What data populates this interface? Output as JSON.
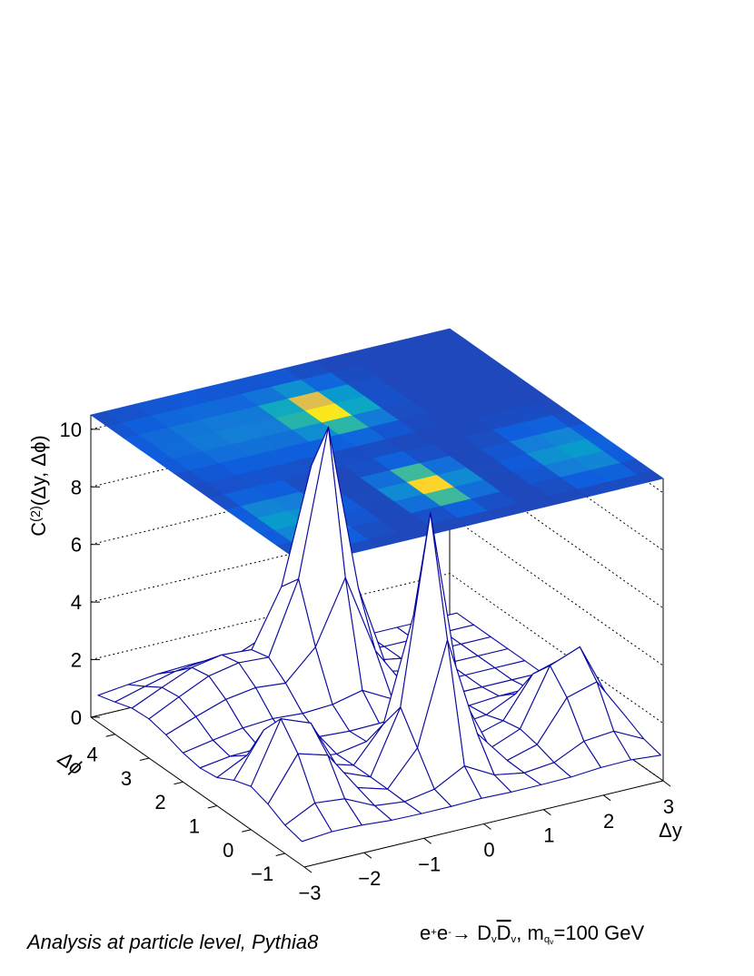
{
  "chart_data": {
    "type": "surface3d",
    "zlabel": [
      {
        "t": "C"
      },
      {
        "t": "(2)",
        "pos": "sup"
      },
      {
        "t": "(Δy, Δϕ)"
      }
    ],
    "xlabel": "Δy",
    "ylabel": "Δϕ",
    "x": [
      -3,
      -2.5,
      -2,
      -1.5,
      -1,
      -0.5,
      0,
      0.5,
      1,
      1.5,
      2,
      2.5,
      3
    ],
    "y": [
      -1.5,
      -1,
      -0.5,
      0,
      0.5,
      1,
      1.5,
      2,
      2.5,
      3,
      3.5,
      4,
      4.5
    ],
    "z": [
      [
        0.83,
        0.92,
        0.9,
        0.82,
        0.8,
        0.8,
        0.83,
        0.8,
        0.8,
        0.82,
        0.9,
        0.92,
        0.83
      ],
      [
        0.98,
        1.5,
        1.4,
        0.91,
        0.8,
        0.98,
        1.54,
        0.98,
        0.8,
        0.91,
        1.4,
        1.5,
        0.98
      ],
      [
        1.3,
        2.8,
        2.5,
        1.12,
        0.82,
        2.0,
        5.5,
        2.0,
        0.82,
        1.12,
        2.5,
        2.8,
        1.3
      ],
      [
        1.5,
        3.6,
        3.2,
        1.25,
        0.83,
        3.0,
        9.5,
        3.0,
        0.83,
        1.25,
        3.2,
        3.6,
        1.5
      ],
      [
        1.3,
        2.8,
        2.5,
        1.12,
        0.82,
        2.0,
        5.5,
        2.0,
        0.82,
        1.12,
        2.5,
        2.8,
        1.3
      ],
      [
        0.98,
        1.5,
        1.4,
        0.91,
        0.8,
        0.98,
        1.54,
        0.98,
        0.8,
        0.91,
        1.4,
        1.5,
        0.98
      ],
      [
        0.9,
        1.05,
        1.09,
        1.04,
        0.99,
        0.93,
        0.95,
        0.83,
        0.8,
        0.82,
        0.9,
        0.92,
        0.83
      ],
      [
        1.01,
        1.2,
        1.37,
        1.45,
        1.38,
        1.44,
        1.68,
        1.13,
        0.84,
        0.8,
        0.8,
        0.8,
        0.8
      ],
      [
        1.22,
        1.6,
        1.95,
        2.11,
        2.02,
        3.02,
        5.18,
        2.4,
        0.91,
        0.8,
        0.8,
        0.8,
        0.8
      ],
      [
        1.36,
        1.87,
        2.35,
        2.56,
        2.5,
        4.97,
        10.0,
        4.15,
        1.02,
        0.8,
        0.8,
        0.8,
        0.8
      ],
      [
        1.32,
        1.79,
        2.23,
        2.42,
        2.35,
        4.29,
        8.25,
        3.53,
        0.98,
        0.8,
        0.8,
        0.8,
        0.8
      ],
      [
        1.12,
        1.41,
        1.68,
        1.8,
        1.72,
        2.15,
        3.19,
        1.68,
        0.88,
        0.8,
        0.8,
        0.8,
        0.8
      ],
      [
        0.94,
        1.06,
        1.18,
        1.23,
        1.18,
        1.14,
        1.17,
        0.94,
        0.8,
        0.8,
        0.8,
        0.8,
        0.8
      ]
    ],
    "xlim": [
      -3,
      3
    ],
    "ylim": [
      -1.5708,
      4.7124
    ],
    "zlim": [
      0,
      10.5
    ],
    "xticks": [
      {
        "value": -3,
        "label": "−3"
      },
      {
        "value": -2,
        "label": "−2"
      },
      {
        "value": -1,
        "label": "−1"
      },
      0,
      1,
      2,
      3
    ],
    "yticks": [
      {
        "value": -1,
        "label": "−1"
      },
      0,
      1,
      2,
      3,
      4
    ],
    "zticks": [
      0,
      2,
      4,
      6,
      8,
      10
    ],
    "line_color": "#0a0aa0",
    "colormap": [
      "#352a87",
      "#0f5cdd",
      "#1481d6",
      "#06a4ca",
      "#2eb7a4",
      "#87bf77",
      "#d1bb59",
      "#fec832",
      "#f9fb0e"
    ],
    "annotations": [
      {
        "parts": [
          {
            "t": "Analysis at particle level, Pythia8"
          }
        ],
        "color": "#7a4a10",
        "italic": true
      },
      {
        "parts": [
          {
            "t": "e"
          },
          {
            "t": "+",
            "pos": "sup"
          },
          {
            "t": "e"
          },
          {
            "t": "-",
            "pos": "sup"
          },
          {
            "t": "→ D"
          },
          {
            "t": "v",
            "pos": "sub"
          },
          {
            "t": "D",
            "pos": "over"
          },
          {
            "t": "v",
            "pos": "sub"
          },
          {
            "t": ", m"
          },
          {
            "t": "q",
            "pos": "sub"
          },
          {
            "t": "v",
            "pos": "subsub"
          },
          {
            "t": "=100 GeV"
          }
        ],
        "color": "#a00000",
        "italic": false
      }
    ]
  }
}
